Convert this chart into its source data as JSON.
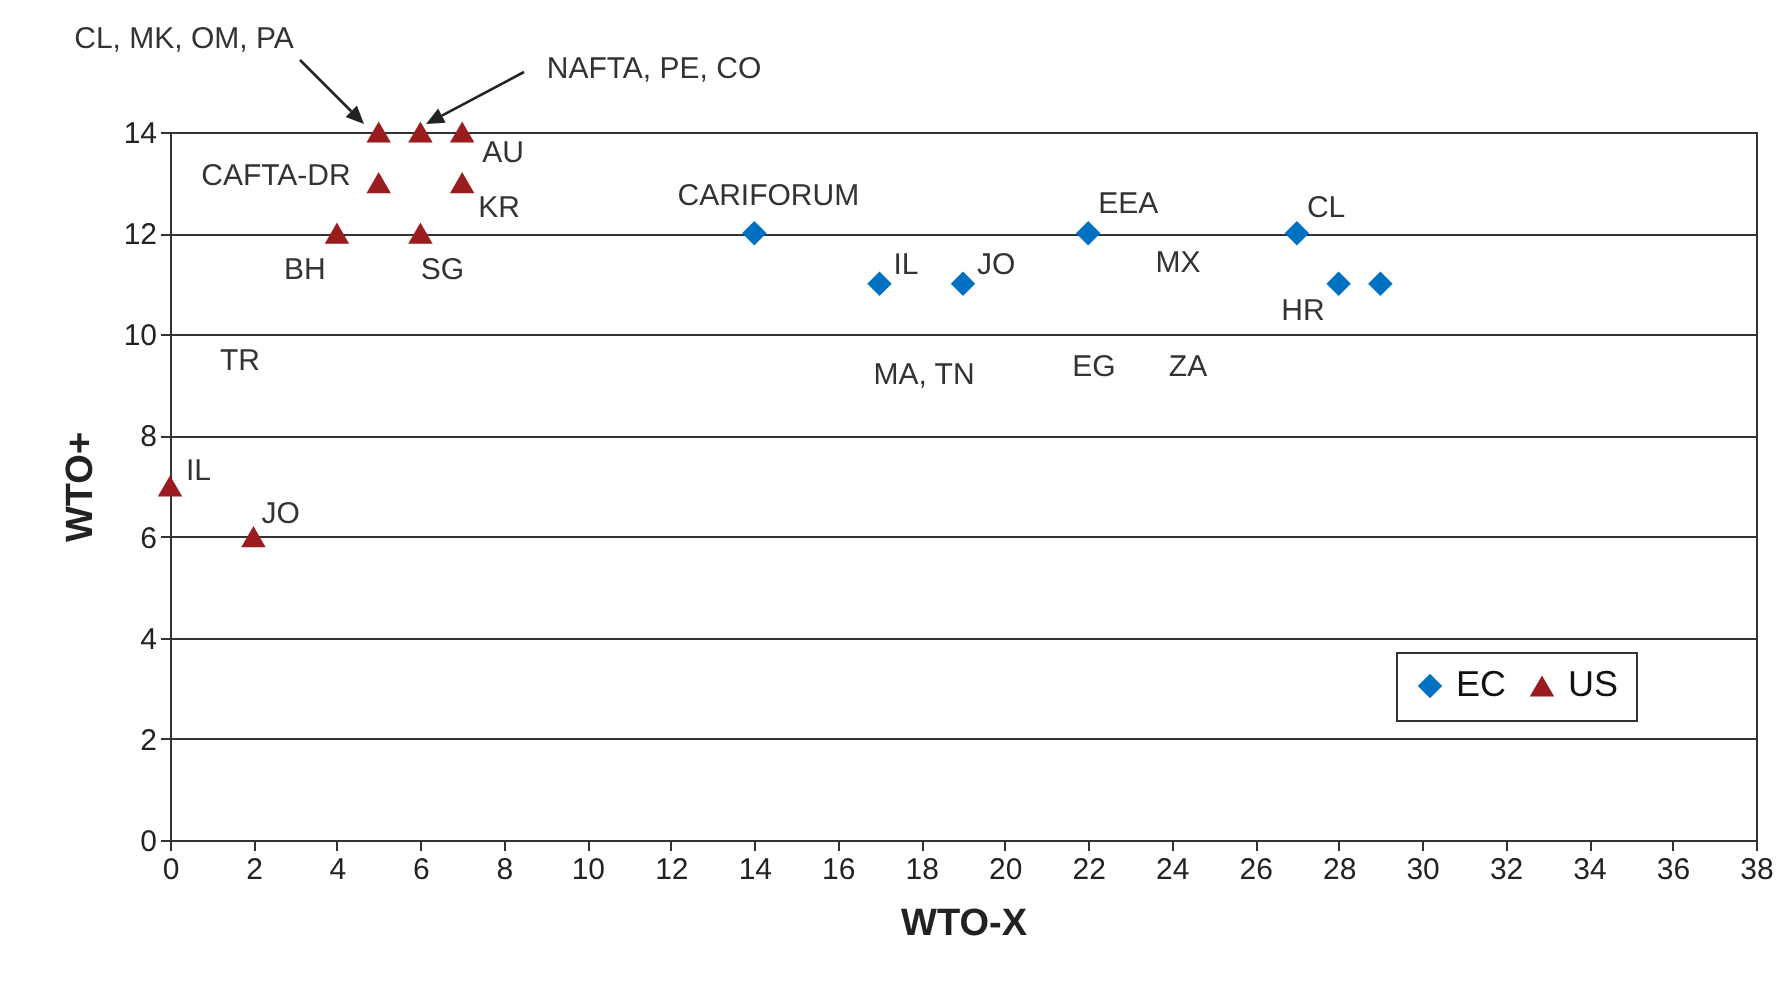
{
  "chart_data": {
    "type": "scatter",
    "xlabel": "WTO-X",
    "ylabel": "WTO+",
    "xlim": [
      0,
      38
    ],
    "xticks": [
      0,
      2,
      4,
      6,
      8,
      10,
      12,
      14,
      16,
      18,
      20,
      22,
      24,
      26,
      28,
      30,
      32,
      34,
      36,
      38
    ],
    "ylim": [
      0,
      14
    ],
    "yticks": [
      0,
      2,
      4,
      6,
      8,
      10,
      12,
      14
    ],
    "grid": "y",
    "legend": "bottom right",
    "series": [
      {
        "name": "EC",
        "color": "#0070c0",
        "marker": "diamond",
        "x": [
          14,
          17,
          19,
          22,
          27,
          28,
          29
        ],
        "values": [
          12,
          11,
          11,
          12,
          12,
          11,
          11
        ]
      },
      {
        "name": "US",
        "color": "#9b1c1f",
        "marker": "triangle",
        "x": [
          5,
          6,
          7,
          5,
          7,
          4,
          6,
          0,
          2
        ],
        "values": [
          14,
          14,
          14,
          13,
          13,
          12,
          12,
          7,
          6
        ]
      }
    ],
    "annotations": [
      "CL, MK, OM, PA",
      "NAFTA, PE, CO",
      {
        "text": "AU",
        "x": 7,
        "y": 14
      },
      {
        "text": "CAFTA-DR",
        "x": 5,
        "y": 13
      },
      {
        "text": "KR",
        "x": 7,
        "y": 13
      },
      {
        "text": "BH",
        "x": 4,
        "y": 12
      },
      {
        "text": "SG",
        "x": 6,
        "y": 12
      },
      {
        "text": "IL",
        "x": 0,
        "y": 7
      },
      {
        "text": "JO",
        "x": 2,
        "y": 6
      },
      {
        "text": "CARIFORUM",
        "x": 14,
        "y": 12
      },
      {
        "text": "IL",
        "x": 17,
        "y": 11
      },
      {
        "text": "JO",
        "x": 19,
        "y": 11
      },
      {
        "text": "EEA",
        "x": 22,
        "y": 12
      },
      {
        "text": "CL",
        "x": 27,
        "y": 12
      },
      {
        "text": "HR",
        "x": 28,
        "y": 11
      },
      "TR",
      "MA, TN",
      "EG",
      "ZA",
      "MX"
    ]
  }
}
